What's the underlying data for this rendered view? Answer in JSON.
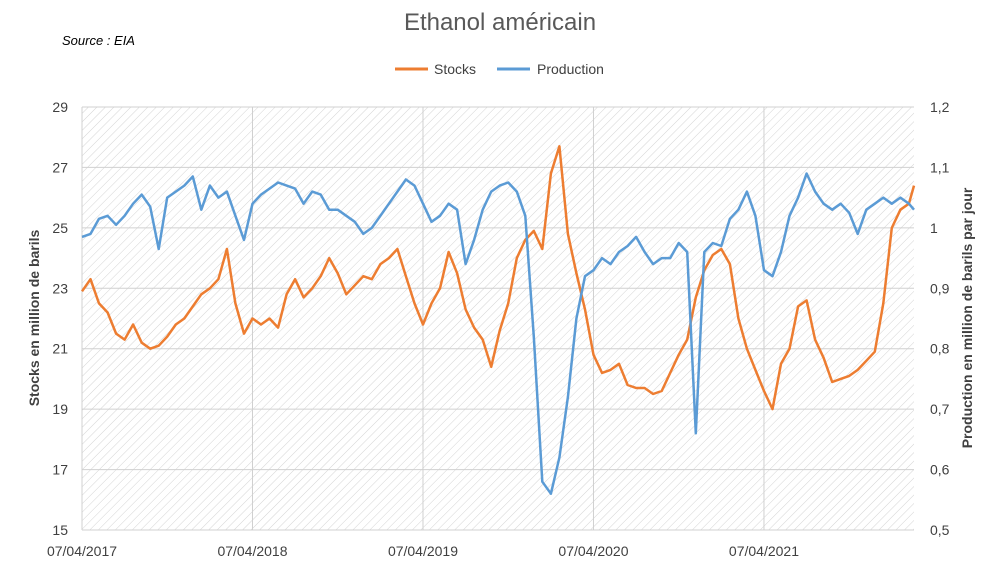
{
  "chart_data": {
    "type": "line",
    "title": "Ethanol américain",
    "source": "Source : EIA",
    "legend": [
      "Stocks",
      "Production"
    ],
    "legend_position": "top-center",
    "ylabel": "Stocks en million de barils",
    "y2label": "Production  en million de barils par jour",
    "ylim": [
      15,
      29
    ],
    "y2lim": [
      0.5,
      1.2
    ],
    "yticks": [
      "15",
      "17",
      "19",
      "21",
      "23",
      "25",
      "27",
      "29"
    ],
    "y2ticks": [
      "0,5",
      "0,6",
      "0,7",
      "0,8",
      "0,9",
      "1",
      "1,1",
      "1,2"
    ],
    "xticks": [
      "07/04/2017",
      "07/04/2018",
      "07/04/2019",
      "07/04/2020",
      "07/04/2021"
    ],
    "x_unit": "years since 07/04/2017",
    "xlim": [
      0,
      4.88
    ],
    "colors": {
      "stocks": "#ED7D31",
      "production": "#5B9BD5"
    },
    "series": [
      {
        "name": "Stocks",
        "axis": "left",
        "x": [
          0.0,
          0.05,
          0.1,
          0.15,
          0.2,
          0.25,
          0.3,
          0.35,
          0.4,
          0.45,
          0.5,
          0.55,
          0.6,
          0.65,
          0.7,
          0.75,
          0.8,
          0.85,
          0.9,
          0.95,
          1.0,
          1.05,
          1.1,
          1.15,
          1.2,
          1.25,
          1.3,
          1.35,
          1.4,
          1.45,
          1.5,
          1.55,
          1.6,
          1.65,
          1.7,
          1.75,
          1.8,
          1.85,
          1.9,
          1.95,
          2.0,
          2.05,
          2.1,
          2.15,
          2.2,
          2.25,
          2.3,
          2.35,
          2.4,
          2.45,
          2.5,
          2.55,
          2.6,
          2.65,
          2.7,
          2.75,
          2.8,
          2.85,
          2.9,
          2.95,
          3.0,
          3.05,
          3.1,
          3.15,
          3.2,
          3.25,
          3.3,
          3.35,
          3.4,
          3.45,
          3.5,
          3.55,
          3.6,
          3.65,
          3.7,
          3.75,
          3.8,
          3.85,
          3.9,
          3.95,
          4.0,
          4.05,
          4.1,
          4.15,
          4.2,
          4.25,
          4.3,
          4.35,
          4.4,
          4.45,
          4.5,
          4.55,
          4.6,
          4.65,
          4.7,
          4.75,
          4.8,
          4.85,
          4.88
        ],
        "values": [
          22.9,
          23.3,
          22.5,
          22.2,
          21.5,
          21.3,
          21.8,
          21.2,
          21.0,
          21.1,
          21.4,
          21.8,
          22.0,
          22.4,
          22.8,
          23.0,
          23.3,
          24.3,
          22.5,
          21.5,
          22.0,
          21.8,
          22.0,
          21.7,
          22.8,
          23.3,
          22.7,
          23.0,
          23.4,
          24.0,
          23.5,
          22.8,
          23.1,
          23.4,
          23.3,
          23.8,
          24.0,
          24.3,
          23.4,
          22.5,
          21.8,
          22.5,
          23.0,
          24.2,
          23.5,
          22.3,
          21.7,
          21.3,
          20.4,
          21.6,
          22.5,
          24.0,
          24.6,
          24.9,
          24.3,
          26.8,
          27.7,
          24.8,
          23.5,
          22.3,
          20.8,
          20.2,
          20.3,
          20.5,
          19.8,
          19.7,
          19.7,
          19.5,
          19.6,
          20.2,
          20.8,
          21.3,
          22.7,
          23.6,
          24.1,
          24.3,
          23.8,
          22.0,
          21.0,
          20.3,
          19.6,
          19.0,
          20.5,
          21.0,
          22.4,
          22.6,
          21.3,
          20.7,
          19.9,
          20.0,
          20.1,
          20.3,
          20.6,
          20.9,
          22.5,
          25.0,
          25.6,
          25.8,
          26.4
        ]
      },
      {
        "name": "Production",
        "axis": "right",
        "x": [
          0.0,
          0.05,
          0.1,
          0.15,
          0.2,
          0.25,
          0.3,
          0.35,
          0.4,
          0.45,
          0.5,
          0.55,
          0.6,
          0.65,
          0.7,
          0.75,
          0.8,
          0.85,
          0.9,
          0.95,
          1.0,
          1.05,
          1.1,
          1.15,
          1.2,
          1.25,
          1.3,
          1.35,
          1.4,
          1.45,
          1.5,
          1.55,
          1.6,
          1.65,
          1.7,
          1.75,
          1.8,
          1.85,
          1.9,
          1.95,
          2.0,
          2.05,
          2.1,
          2.15,
          2.2,
          2.25,
          2.3,
          2.35,
          2.4,
          2.45,
          2.5,
          2.55,
          2.6,
          2.65,
          2.7,
          2.75,
          2.8,
          2.85,
          2.9,
          2.95,
          3.0,
          3.05,
          3.1,
          3.15,
          3.2,
          3.25,
          3.3,
          3.35,
          3.4,
          3.45,
          3.5,
          3.55,
          3.6,
          3.65,
          3.7,
          3.75,
          3.8,
          3.85,
          3.9,
          3.95,
          4.0,
          4.05,
          4.1,
          4.15,
          4.2,
          4.25,
          4.3,
          4.35,
          4.4,
          4.45,
          4.5,
          4.55,
          4.6,
          4.65,
          4.7,
          4.75,
          4.8,
          4.85,
          4.88
        ],
        "values": [
          0.985,
          0.99,
          1.015,
          1.02,
          1.005,
          1.02,
          1.04,
          1.055,
          1.035,
          0.965,
          1.05,
          1.06,
          1.07,
          1.085,
          1.03,
          1.07,
          1.05,
          1.06,
          1.02,
          0.98,
          1.04,
          1.055,
          1.065,
          1.075,
          1.07,
          1.065,
          1.04,
          1.06,
          1.055,
          1.03,
          1.03,
          1.02,
          1.01,
          0.99,
          1.0,
          1.02,
          1.04,
          1.06,
          1.08,
          1.07,
          1.04,
          1.01,
          1.02,
          1.04,
          1.03,
          0.94,
          0.98,
          1.03,
          1.06,
          1.07,
          1.075,
          1.06,
          1.02,
          0.82,
          0.58,
          0.56,
          0.62,
          0.72,
          0.85,
          0.92,
          0.93,
          0.95,
          0.94,
          0.96,
          0.97,
          0.985,
          0.96,
          0.94,
          0.95,
          0.95,
          0.975,
          0.96,
          0.66,
          0.96,
          0.975,
          0.97,
          1.015,
          1.03,
          1.06,
          1.02,
          0.93,
          0.92,
          0.96,
          1.02,
          1.05,
          1.09,
          1.06,
          1.04,
          1.03,
          1.04,
          1.025,
          0.99,
          1.03,
          1.04,
          1.05,
          1.04,
          1.05,
          1.04,
          1.03
        ]
      }
    ]
  }
}
